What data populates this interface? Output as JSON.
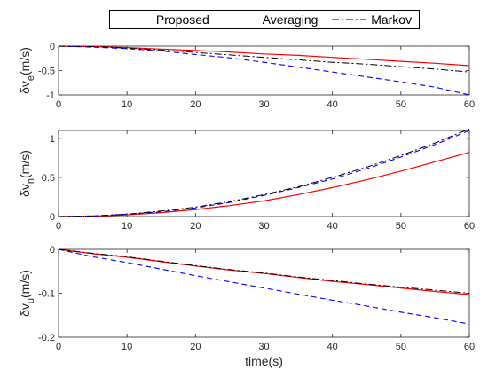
{
  "legend": [
    {
      "label": "Proposed",
      "color": "#ff0000",
      "style": "solid"
    },
    {
      "label": "Averaging",
      "color": "#0000ff",
      "style": "dashed"
    },
    {
      "label": "Markov",
      "color": "#000000",
      "style": "dashdot"
    }
  ],
  "chart_data": [
    {
      "type": "line",
      "ylabel_main": "δv",
      "ylabel_sub": "e",
      "ylabel_unit": "(m/s)",
      "xlabel": "",
      "xlim": [
        0,
        60
      ],
      "ylim": [
        -1,
        0
      ],
      "xticks": [
        0,
        10,
        20,
        30,
        40,
        50,
        60
      ],
      "yticks": [
        -1,
        -0.5,
        0
      ],
      "ytick_labels": [
        "-1",
        "-0.5",
        "0"
      ],
      "x": [
        0,
        5,
        10,
        15,
        20,
        25,
        30,
        35,
        40,
        45,
        50,
        55,
        60
      ],
      "series": [
        {
          "name": "Proposed",
          "values": [
            0,
            -0.01,
            -0.03,
            -0.06,
            -0.09,
            -0.12,
            -0.16,
            -0.19,
            -0.23,
            -0.27,
            -0.31,
            -0.35,
            -0.4
          ]
        },
        {
          "name": "Averaging",
          "values": [
            0,
            -0.02,
            -0.05,
            -0.1,
            -0.17,
            -0.24,
            -0.33,
            -0.43,
            -0.53,
            -0.63,
            -0.73,
            -0.84,
            -1.0
          ]
        },
        {
          "name": "Markov",
          "values": [
            0,
            -0.01,
            -0.04,
            -0.08,
            -0.13,
            -0.18,
            -0.23,
            -0.28,
            -0.33,
            -0.37,
            -0.42,
            -0.47,
            -0.53
          ]
        }
      ]
    },
    {
      "type": "line",
      "ylabel_main": "δv",
      "ylabel_sub": "n",
      "ylabel_unit": "(m/s)",
      "xlabel": "",
      "xlim": [
        0,
        60
      ],
      "ylim": [
        0,
        1.1
      ],
      "xticks": [
        0,
        10,
        20,
        30,
        40,
        50,
        60
      ],
      "yticks": [
        0,
        0.5,
        1
      ],
      "ytick_labels": [
        "0",
        "0.5",
        "1"
      ],
      "x": [
        0,
        5,
        10,
        15,
        20,
        25,
        30,
        35,
        40,
        45,
        50,
        55,
        60
      ],
      "series": [
        {
          "name": "Proposed",
          "values": [
            0,
            0.005,
            0.02,
            0.05,
            0.09,
            0.14,
            0.2,
            0.28,
            0.37,
            0.47,
            0.58,
            0.7,
            0.82
          ]
        },
        {
          "name": "Averaging",
          "values": [
            0,
            0.007,
            0.03,
            0.06,
            0.11,
            0.18,
            0.27,
            0.37,
            0.48,
            0.61,
            0.76,
            0.92,
            1.1
          ]
        },
        {
          "name": "Markov",
          "values": [
            0,
            0.008,
            0.03,
            0.07,
            0.12,
            0.19,
            0.28,
            0.38,
            0.5,
            0.63,
            0.78,
            0.94,
            1.12
          ]
        }
      ]
    },
    {
      "type": "line",
      "ylabel_main": "δv",
      "ylabel_sub": "u",
      "ylabel_unit": "(m/s)",
      "xlabel": "time(s)",
      "xlim": [
        0,
        60
      ],
      "ylim": [
        -0.2,
        0
      ],
      "xticks": [
        0,
        10,
        20,
        30,
        40,
        50,
        60
      ],
      "yticks": [
        -0.2,
        -0.1,
        0
      ],
      "ytick_labels": [
        "-0.2",
        "-0.1",
        "0"
      ],
      "x": [
        0,
        5,
        10,
        15,
        20,
        25,
        30,
        35,
        40,
        45,
        50,
        55,
        60
      ],
      "series": [
        {
          "name": "Proposed",
          "values": [
            0,
            -0.01,
            -0.018,
            -0.028,
            -0.038,
            -0.047,
            -0.055,
            -0.064,
            -0.073,
            -0.08,
            -0.088,
            -0.096,
            -0.103
          ]
        },
        {
          "name": "Averaging",
          "values": [
            0,
            -0.017,
            -0.03,
            -0.045,
            -0.06,
            -0.074,
            -0.088,
            -0.102,
            -0.116,
            -0.129,
            -0.143,
            -0.156,
            -0.17
          ]
        },
        {
          "name": "Markov",
          "values": [
            0,
            -0.009,
            -0.017,
            -0.027,
            -0.037,
            -0.046,
            -0.054,
            -0.063,
            -0.071,
            -0.079,
            -0.086,
            -0.093,
            -0.1
          ]
        }
      ]
    }
  ]
}
